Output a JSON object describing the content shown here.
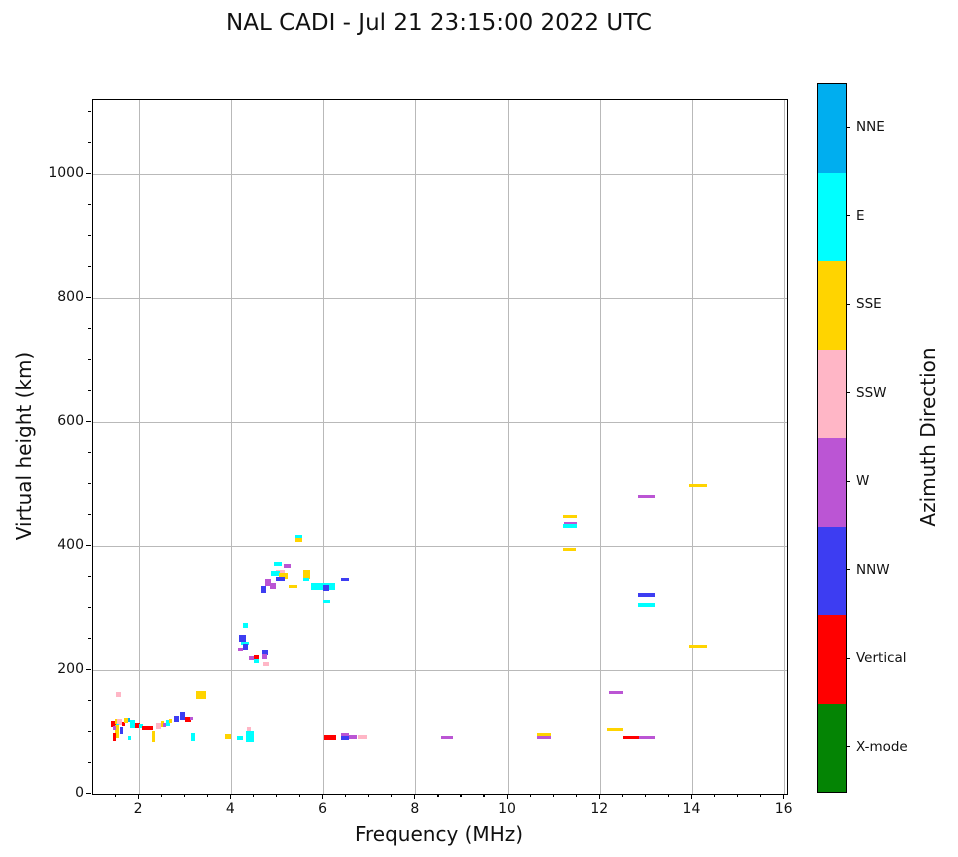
{
  "title": "NAL CADI - Jul 21 23:15:00 2022 UTC",
  "chart_data": {
    "type": "scatter",
    "title": "NAL CADI - Jul 21 23:15:00 2022 UTC",
    "xlabel": "Frequency (MHz)",
    "ylabel": "Virtual height (km)",
    "xlim": [
      1.0,
      16.05
    ],
    "ylim": [
      0,
      1120
    ],
    "x_major_ticks": [
      2,
      4,
      6,
      8,
      10,
      12,
      14,
      16
    ],
    "y_major_ticks": [
      0,
      200,
      400,
      600,
      800,
      1000
    ],
    "x_minor_step": 0.5,
    "y_minor_step": 50,
    "grid": true,
    "grid_color": "#b9b9b9",
    "colorbar": {
      "label": "Azimuth Direction",
      "categories": [
        "NNE",
        "E",
        "SSE",
        "SSW",
        "W",
        "NNW",
        "Vertical",
        "X-mode"
      ],
      "colors": {
        "NNE": "#00AEEF",
        "E": "#00FFFF",
        "SSE": "#FFD400",
        "SSW": "#FFB6C6",
        "W": "#BB55D4",
        "NNW": "#3D3DF2",
        "Vertical": "#FF0000",
        "X-mode": "#048404"
      }
    },
    "point_fields": [
      "freq_MHz",
      "virtual_height_km",
      "freq_span_MHz",
      "height_span_km",
      "azimuth"
    ],
    "points": [
      [
        1.55,
        160,
        0.1,
        8,
        "SSW"
      ],
      [
        3.34,
        160,
        0.2,
        12,
        "SSE"
      ],
      [
        1.45,
        113,
        0.1,
        9,
        "Vertical"
      ],
      [
        1.51,
        117,
        0.07,
        8,
        "SSE"
      ],
      [
        1.58,
        116,
        0.1,
        10,
        "SSW"
      ],
      [
        1.53,
        109,
        0.08,
        8,
        "E"
      ],
      [
        1.52,
        101,
        0.07,
        20,
        "SSE"
      ],
      [
        1.47,
        92,
        0.07,
        12,
        "Vertical"
      ],
      [
        1.62,
        102,
        0.08,
        11,
        "NNW"
      ],
      [
        1.66,
        113,
        0.06,
        7,
        "Vertical"
      ],
      [
        1.46,
        106,
        0.06,
        7,
        "W"
      ],
      [
        1.78,
        119,
        0.06,
        6,
        "NNE"
      ],
      [
        1.85,
        113,
        0.11,
        12,
        "E"
      ],
      [
        1.72,
        118,
        0.08,
        8,
        "SSE"
      ],
      [
        1.97,
        111,
        0.11,
        8,
        "Vertical"
      ],
      [
        2.04,
        110,
        0.07,
        7,
        "E"
      ],
      [
        1.79,
        90,
        0.07,
        7,
        "E"
      ],
      [
        2.19,
        107,
        0.24,
        7,
        "Vertical"
      ],
      [
        2.42,
        110,
        0.11,
        10,
        "SSW"
      ],
      [
        2.51,
        113,
        0.08,
        9,
        "SSE"
      ],
      [
        2.56,
        111,
        0.06,
        7,
        "W"
      ],
      [
        2.62,
        115,
        0.09,
        9,
        "E"
      ],
      [
        2.69,
        118,
        0.06,
        7,
        "SSE"
      ],
      [
        2.82,
        121,
        0.11,
        11,
        "NNW"
      ],
      [
        2.95,
        126,
        0.11,
        12,
        "NNW"
      ],
      [
        3.06,
        120,
        0.11,
        7,
        "Vertical"
      ],
      [
        3.13,
        122,
        0.06,
        6,
        "W"
      ],
      [
        3.17,
        92,
        0.09,
        13,
        "E"
      ],
      [
        2.31,
        93,
        0.07,
        17,
        "SSE"
      ],
      [
        3.92,
        93,
        0.13,
        7,
        "SSE"
      ],
      [
        4.19,
        90,
        0.13,
        7,
        "E"
      ],
      [
        4.41,
        93,
        0.17,
        17,
        "E"
      ],
      [
        4.38,
        105,
        0.1,
        7,
        "SSW"
      ],
      [
        4.3,
        272,
        0.11,
        7,
        "E"
      ],
      [
        4.24,
        251,
        0.15,
        11,
        "NNW"
      ],
      [
        4.29,
        243,
        0.17,
        6,
        "E"
      ],
      [
        4.31,
        237,
        0.11,
        10,
        "NNW"
      ],
      [
        4.2,
        233,
        0.12,
        6,
        "W"
      ],
      [
        4.45,
        219,
        0.14,
        6,
        "W"
      ],
      [
        4.54,
        221,
        0.11,
        6,
        "Vertical"
      ],
      [
        4.54,
        215,
        0.11,
        6,
        "E"
      ],
      [
        4.73,
        228,
        0.12,
        8,
        "NNW"
      ],
      [
        4.72,
        222,
        0.12,
        8,
        "W"
      ],
      [
        4.75,
        210,
        0.14,
        6,
        "SSW"
      ],
      [
        4.69,
        330,
        0.11,
        10,
        "NNW"
      ],
      [
        4.79,
        341,
        0.13,
        11,
        "W"
      ],
      [
        4.91,
        336,
        0.13,
        10,
        "W"
      ],
      [
        5.02,
        371,
        0.17,
        6,
        "E"
      ],
      [
        5.21,
        368,
        0.15,
        6,
        "W"
      ],
      [
        5.07,
        358,
        0.2,
        6,
        "SSW"
      ],
      [
        4.96,
        356,
        0.2,
        9,
        "E"
      ],
      [
        5.13,
        352,
        0.2,
        9,
        "SSE"
      ],
      [
        5.07,
        347,
        0.2,
        6,
        "NNW"
      ],
      [
        5.34,
        335,
        0.18,
        6,
        "SSE"
      ],
      [
        5.63,
        354,
        0.17,
        14,
        "SSE"
      ],
      [
        5.61,
        346,
        0.13,
        6,
        "E"
      ],
      [
        5.99,
        335,
        0.52,
        10,
        "E"
      ],
      [
        6.05,
        332,
        0.13,
        10,
        "NNW"
      ],
      [
        6.46,
        346,
        0.17,
        6,
        "NNW"
      ],
      [
        6.07,
        311,
        0.15,
        4,
        "E"
      ],
      [
        5.46,
        415,
        0.15,
        6,
        "E"
      ],
      [
        5.46,
        410,
        0.15,
        6,
        "SSE"
      ],
      [
        6.14,
        91,
        0.24,
        7,
        "Vertical"
      ],
      [
        6.47,
        95,
        0.17,
        7,
        "W"
      ],
      [
        6.47,
        90,
        0.17,
        6,
        "NNW"
      ],
      [
        6.64,
        92,
        0.19,
        6,
        "W"
      ],
      [
        6.84,
        92,
        0.19,
        6,
        "SSW"
      ],
      [
        8.68,
        91,
        0.26,
        6,
        "W"
      ],
      [
        10.78,
        95,
        0.3,
        6,
        "SSE"
      ],
      [
        10.78,
        91,
        0.3,
        6,
        "W"
      ],
      [
        12.32,
        104,
        0.33,
        6,
        "SSE"
      ],
      [
        12.66,
        91,
        0.34,
        6,
        "Vertical"
      ],
      [
        13.01,
        91,
        0.34,
        6,
        "W"
      ],
      [
        11.35,
        448,
        0.31,
        6,
        "SSE"
      ],
      [
        11.35,
        437,
        0.29,
        4,
        "W"
      ],
      [
        11.35,
        433,
        0.31,
        6,
        "E"
      ],
      [
        11.33,
        394,
        0.29,
        4,
        "SSE"
      ],
      [
        13.0,
        480,
        0.36,
        6,
        "W"
      ],
      [
        13.0,
        321,
        0.36,
        6,
        "NNW"
      ],
      [
        13.0,
        305,
        0.36,
        6,
        "E"
      ],
      [
        14.12,
        498,
        0.4,
        6,
        "SSE"
      ],
      [
        14.12,
        238,
        0.4,
        6,
        "SSE"
      ],
      [
        12.34,
        163,
        0.32,
        4,
        "W"
      ]
    ]
  }
}
